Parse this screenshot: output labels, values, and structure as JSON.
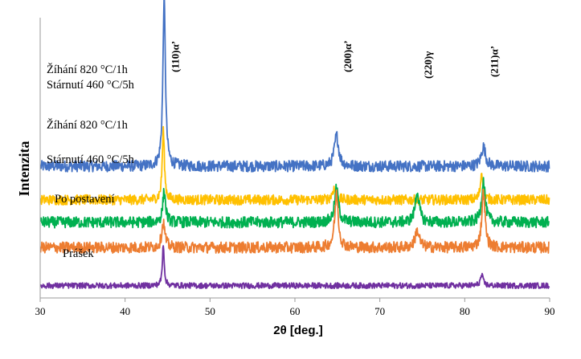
{
  "chart_data": {
    "type": "line",
    "xlabel": "2θ [deg.]",
    "ylabel": "Intenzita",
    "xlim": [
      30,
      90
    ],
    "x_ticks": [
      "30",
      "40",
      "50",
      "60",
      "70",
      "80",
      "90"
    ],
    "y_ticks_shown": false,
    "grid": false,
    "peak_annotations": [
      {
        "text": "(110)α’",
        "x": 44.6
      },
      {
        "text": "(200)α’",
        "x": 64.9
      },
      {
        "text": "(220)γ",
        "x": 74.4
      },
      {
        "text": "(211)α’",
        "x": 82.2
      }
    ],
    "series": [
      {
        "name_lines": [
          "Žíhání 820 °C/1h",
          "Stárnutí 460 °C/5h"
        ],
        "color": "#4472C4",
        "baseline": 2.35,
        "noise": 0.1,
        "peaks": [
          [
            44.6,
            3.0,
            0.35
          ],
          [
            64.9,
            0.55,
            0.6
          ],
          [
            82.2,
            0.35,
            0.6
          ]
        ]
      },
      {
        "name_lines": [
          "Žíhání 820 °C/1h"
        ],
        "color": "#FFC000",
        "baseline": 1.75,
        "noise": 0.09,
        "peaks": [
          [
            44.5,
            1.25,
            0.3
          ],
          [
            64.6,
            0.2,
            0.5
          ],
          [
            82.0,
            0.5,
            0.35
          ]
        ]
      },
      {
        "name_lines": [
          "Stárnutí 460 °C/5h"
        ],
        "color": "#00B050",
        "baseline": 1.35,
        "noise": 0.1,
        "peaks": [
          [
            44.6,
            0.55,
            0.4
          ],
          [
            64.9,
            0.6,
            0.55
          ],
          [
            74.4,
            0.55,
            0.55
          ],
          [
            82.2,
            0.75,
            0.5
          ]
        ]
      },
      {
        "name_lines": [
          "Po postavení"
        ],
        "color": "#ED7D31",
        "baseline": 0.9,
        "noise": 0.1,
        "peaks": [
          [
            44.5,
            0.45,
            0.45
          ],
          [
            64.9,
            0.95,
            0.5
          ],
          [
            74.4,
            0.3,
            0.6
          ],
          [
            82.2,
            1.0,
            0.45
          ]
        ]
      },
      {
        "name_lines": [
          "Prášek"
        ],
        "color": "#7030A0",
        "baseline": 0.22,
        "noise": 0.05,
        "peaks": [
          [
            44.5,
            0.75,
            0.25
          ],
          [
            82.0,
            0.18,
            0.4
          ]
        ]
      }
    ]
  }
}
